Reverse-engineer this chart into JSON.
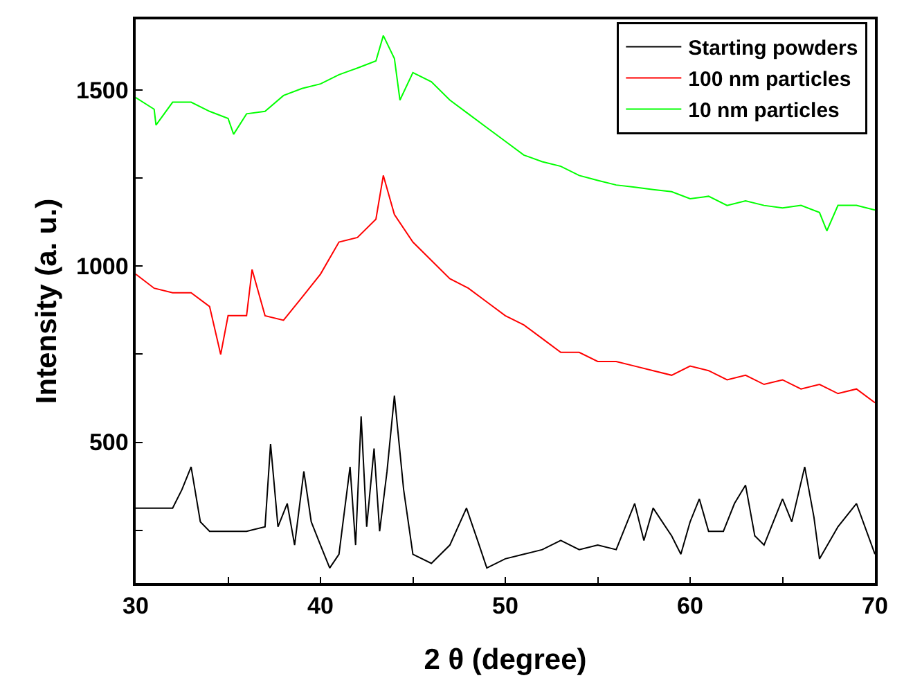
{
  "chart_data": {
    "type": "line",
    "xlabel": "2 θ (degree)",
    "ylabel": "Intensity (a. u.)",
    "xlim": [
      30,
      70
    ],
    "xticks": [
      30,
      {
        "value": 35,
        "label": null
      },
      40,
      {
        "value": 45,
        "label": null
      },
      50,
      {
        "value": 55,
        "label": null
      },
      60,
      {
        "value": 65,
        "label": null
      },
      70
    ],
    "ylim": [
      100,
      1700
    ],
    "yticks": [
      {
        "value": 250,
        "label": null
      },
      500,
      {
        "value": 750,
        "label": null
      },
      1000,
      {
        "value": 1250,
        "label": null
      },
      1500
    ],
    "legend": "top right",
    "marker": "none",
    "line_style": "solid",
    "series": [
      {
        "name": "Starting powders",
        "color": "#000000",
        "x": [
          30,
          31,
          32,
          32.5,
          33,
          33.5,
          34,
          35,
          36,
          37,
          37.3,
          37.7,
          38.2,
          38.6,
          39.1,
          39.5,
          40,
          40.5,
          41,
          41.6,
          41.9,
          42.2,
          42.5,
          42.9,
          43.2,
          43.6,
          44,
          44.5,
          45,
          46,
          47,
          47.9,
          48.5,
          49,
          50,
          51,
          52,
          53,
          54,
          55,
          56,
          57,
          57.5,
          58,
          59,
          59.5,
          60,
          60.5,
          61,
          61.8,
          62.4,
          63,
          63.5,
          64,
          65,
          65.5,
          66.2,
          66.7,
          67,
          68,
          69,
          70
        ],
        "values": [
          313,
          313,
          313,
          365,
          430,
          274,
          247,
          247,
          247,
          260,
          495,
          260,
          326,
          208,
          417,
          274,
          208,
          143,
          182,
          430,
          208,
          573,
          260,
          482,
          247,
          417,
          632,
          365,
          182,
          156,
          208,
          313,
          221,
          143,
          169,
          182,
          195,
          221,
          195,
          208,
          195,
          326,
          221,
          313,
          234,
          182,
          274,
          339,
          247,
          247,
          326,
          378,
          234,
          208,
          339,
          274,
          430,
          287,
          169,
          260,
          326,
          182
        ]
      },
      {
        "name": "100 nm particles",
        "color": "#ff0000",
        "x": [
          30,
          31,
          32,
          33,
          34,
          34.6,
          35,
          36,
          36.3,
          37,
          38,
          39,
          40,
          41,
          42,
          43,
          43.4,
          44,
          45,
          46,
          47,
          48,
          49,
          50,
          51,
          52,
          53,
          54,
          55,
          56,
          57,
          58,
          59,
          60,
          61,
          62,
          63,
          64,
          65,
          66,
          67,
          68,
          69,
          70
        ],
        "values": [
          977,
          937,
          924,
          924,
          885,
          749,
          859,
          859,
          990,
          859,
          846,
          911,
          977,
          1068,
          1081,
          1133,
          1257,
          1146,
          1068,
          1016,
          964,
          937,
          898,
          859,
          833,
          794,
          755,
          755,
          729,
          729,
          716,
          703,
          690,
          716,
          703,
          677,
          690,
          664,
          677,
          651,
          664,
          638,
          651,
          612
        ]
      },
      {
        "name": "10 nm particles",
        "color": "#00ff00",
        "x": [
          30,
          31,
          31.1,
          32,
          33,
          34,
          35,
          35.3,
          36,
          37,
          38,
          39,
          40,
          41,
          42,
          43,
          43.4,
          44,
          44.3,
          45,
          46,
          47,
          48,
          49,
          50,
          51,
          52,
          53,
          54,
          55,
          56,
          57,
          58,
          59,
          60,
          61,
          62,
          63,
          64,
          65,
          66,
          67,
          67.4,
          68,
          69,
          70
        ],
        "values": [
          1478,
          1445,
          1400,
          1465,
          1465,
          1439,
          1419,
          1374,
          1432,
          1439,
          1484,
          1504,
          1517,
          1543,
          1562,
          1582,
          1654,
          1589,
          1471,
          1549,
          1523,
          1471,
          1432,
          1393,
          1354,
          1315,
          1296,
          1283,
          1257,
          1243,
          1230,
          1224,
          1217,
          1211,
          1191,
          1198,
          1172,
          1185,
          1172,
          1165,
          1172,
          1152,
          1100,
          1172,
          1172,
          1159
        ]
      }
    ]
  }
}
